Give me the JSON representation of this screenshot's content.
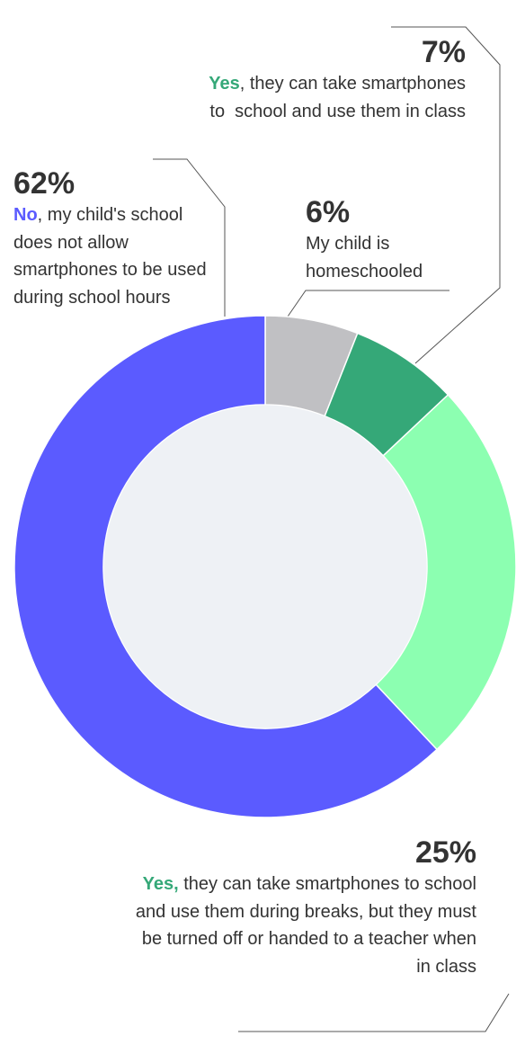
{
  "chart_data": {
    "type": "donut",
    "categories": [
      {
        "text": "My child is homeschooled"
      },
      {
        "highlight": "Yes",
        "text": ", they can take smartphones to  school and use them in class"
      },
      {
        "highlight": "Yes,",
        "text": " they can take smartphones to school and use them during breaks, but they must be turned off or handed to a teacher when in class"
      },
      {
        "highlight": "No",
        "text": ", my child's school does not allow smartphones to be used during school hours"
      }
    ],
    "values": [
      6,
      7,
      25,
      62
    ],
    "value_labels": [
      "6%",
      "7%",
      "25%",
      "62%"
    ],
    "colors": [
      "#c0c0c3",
      "#35a878",
      "#8cffb1",
      "#5b5bff"
    ],
    "highlight_colors": [
      null,
      "#35a878",
      "#35a878",
      "#5b5bff"
    ]
  }
}
